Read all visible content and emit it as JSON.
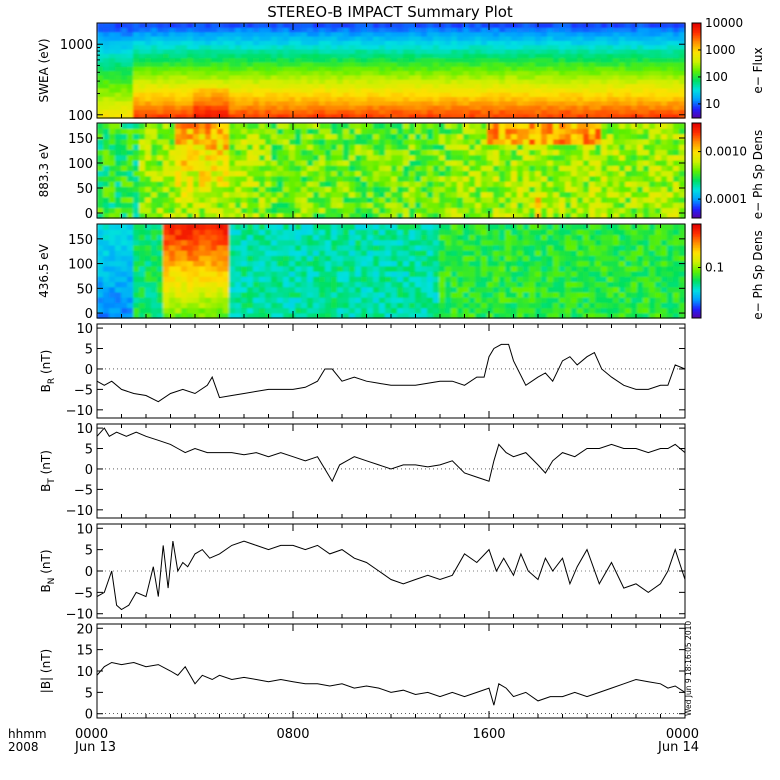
{
  "title": "STEREO-B IMPACT Summary Plot",
  "stamp": "Wed Jun 9 18:16:05 2010",
  "time_axis": {
    "row_label_1": "hhmm",
    "row_label_2": "2008",
    "ticks": [
      {
        "hour": 0,
        "label": "0000",
        "sub": "Jun 13"
      },
      {
        "hour": 8,
        "label": "0800",
        "sub": ""
      },
      {
        "hour": 16,
        "label": "1600",
        "sub": ""
      },
      {
        "hour": 24,
        "label": "0000",
        "sub": "Jun 14"
      }
    ],
    "range_hours": [
      0,
      24
    ]
  },
  "colorscale": [
    "#5a00a0",
    "#2020ff",
    "#00a0ff",
    "#00e0e0",
    "#00e060",
    "#60f000",
    "#d0f000",
    "#ffe000",
    "#ff9000",
    "#ff3000",
    "#e00000"
  ],
  "chart_data": [
    {
      "type": "heatmap",
      "ylabel": "SWEA (eV)",
      "yscale": "log",
      "ylim": [
        90,
        2000
      ],
      "yticks": [
        {
          "v": 100,
          "label": "100"
        },
        {
          "v": 1000,
          "label": "1000"
        }
      ],
      "colorbar": {
        "label": "e− Flux",
        "scale": "log",
        "range": [
          3,
          10000
        ],
        "ticks": [
          {
            "v": 10,
            "label": "10"
          },
          {
            "v": 100,
            "label": "100"
          },
          {
            "v": 1000,
            "label": "1000"
          },
          {
            "v": 10000,
            "label": "10000"
          }
        ]
      }
    },
    {
      "type": "heatmap",
      "ylabel": "883.3 eV",
      "yscale": "linear",
      "ylim": [
        -10,
        180
      ],
      "yticks": [
        {
          "v": 0,
          "label": "0"
        },
        {
          "v": 50,
          "label": "50"
        },
        {
          "v": 100,
          "label": "100"
        },
        {
          "v": 150,
          "label": "150"
        }
      ],
      "colorbar": {
        "label": "e− Ph Sp Dens",
        "scale": "log",
        "range": [
          4e-05,
          0.004
        ],
        "ticks": [
          {
            "v": 0.0001,
            "label": "0.0001"
          },
          {
            "v": 0.001,
            "label": "0.0010"
          }
        ]
      }
    },
    {
      "type": "heatmap",
      "ylabel": "436.5 eV",
      "yscale": "linear",
      "ylim": [
        -10,
        180
      ],
      "yticks": [
        {
          "v": 0,
          "label": "0"
        },
        {
          "v": 50,
          "label": "50"
        },
        {
          "v": 100,
          "label": "100"
        },
        {
          "v": 150,
          "label": "150"
        }
      ],
      "colorbar": {
        "label": "e− Ph Sp Dens",
        "scale": "log",
        "range": [
          0.02,
          0.4
        ],
        "ticks": [
          {
            "v": 0.1,
            "label": "0.1"
          }
        ]
      }
    },
    {
      "type": "line",
      "ylabel_main": "B",
      "ylabel_sub": "R",
      "ylabel_unit": " (nT)",
      "ylim": [
        -12,
        11
      ],
      "yticks": [
        {
          "v": -10,
          "label": "−10"
        },
        {
          "v": -5,
          "label": "−5"
        },
        {
          "v": 0,
          "label": "0"
        },
        {
          "v": 5,
          "label": "5"
        },
        {
          "v": 10,
          "label": "10"
        }
      ],
      "x": [
        0,
        0.3,
        0.6,
        1.0,
        1.5,
        2.0,
        2.5,
        3.0,
        3.5,
        4.0,
        4.5,
        4.7,
        5.0,
        5.5,
        6.0,
        6.5,
        7.0,
        7.5,
        8.0,
        8.5,
        9.0,
        9.3,
        9.6,
        10.0,
        10.5,
        11.0,
        11.5,
        12.0,
        12.5,
        13.0,
        13.5,
        14.0,
        14.5,
        15.0,
        15.5,
        15.8,
        16.0,
        16.2,
        16.5,
        16.8,
        17.0,
        17.5,
        18.0,
        18.3,
        18.6,
        19.0,
        19.3,
        19.6,
        20.0,
        20.3,
        20.6,
        21.0,
        21.5,
        22.0,
        22.5,
        23.0,
        23.3,
        23.6,
        24.0
      ],
      "y": [
        -3,
        -4,
        -3,
        -5,
        -6,
        -6.5,
        -8,
        -6,
        -5,
        -6,
        -4,
        -2,
        -7,
        -6.5,
        -6,
        -5.5,
        -5,
        -5,
        -5,
        -4.5,
        -3,
        0,
        0,
        -3,
        -2,
        -3,
        -3.5,
        -4,
        -4,
        -4,
        -3.5,
        -3,
        -3,
        -4,
        -2,
        -2,
        3,
        5,
        6,
        6,
        2,
        -4,
        -2,
        -1,
        -3,
        2,
        3,
        1,
        3,
        4,
        0,
        -2,
        -4,
        -5,
        -5,
        -4,
        -4,
        1,
        0
      ]
    },
    {
      "type": "line",
      "ylabel_main": "B",
      "ylabel_sub": "T",
      "ylabel_unit": " (nT)",
      "ylim": [
        -12,
        11
      ],
      "yticks": [
        {
          "v": -10,
          "label": "−10"
        },
        {
          "v": -5,
          "label": "−5"
        },
        {
          "v": 0,
          "label": "0"
        },
        {
          "v": 5,
          "label": "5"
        },
        {
          "v": 10,
          "label": "10"
        }
      ],
      "x": [
        0,
        0.3,
        0.5,
        0.8,
        1.2,
        1.6,
        2.0,
        2.5,
        3.0,
        3.3,
        3.6,
        4.0,
        4.5,
        5.0,
        5.5,
        6.0,
        6.5,
        7.0,
        7.5,
        8.0,
        8.5,
        9.0,
        9.3,
        9.6,
        9.9,
        10.2,
        10.5,
        11.0,
        11.5,
        12.0,
        12.5,
        13.0,
        13.5,
        14.0,
        14.5,
        15.0,
        15.5,
        16.0,
        16.2,
        16.4,
        16.7,
        17.0,
        17.5,
        18.0,
        18.3,
        18.6,
        19.0,
        19.5,
        20.0,
        20.5,
        21.0,
        21.5,
        22.0,
        22.5,
        23.0,
        23.3,
        23.6,
        24.0
      ],
      "y": [
        8,
        10,
        8,
        9,
        8,
        9,
        8,
        7,
        6,
        5,
        4,
        5,
        4,
        4,
        4,
        3.5,
        4,
        3,
        4,
        3,
        2,
        3,
        0,
        -3,
        1,
        2,
        3,
        2,
        1,
        0,
        1,
        1,
        0.5,
        1,
        2,
        -1,
        -2,
        -3,
        2,
        6,
        4,
        3,
        4,
        1,
        -1,
        2,
        4,
        3,
        5,
        5,
        6,
        5,
        5,
        4,
        5,
        5,
        6,
        4
      ]
    },
    {
      "type": "line",
      "ylabel_main": "B",
      "ylabel_sub": "N",
      "ylabel_unit": " (nT)",
      "ylim": [
        -11,
        11
      ],
      "yticks": [
        {
          "v": -10,
          "label": "−10"
        },
        {
          "v": -5,
          "label": "−5"
        },
        {
          "v": 0,
          "label": "0"
        },
        {
          "v": 5,
          "label": "5"
        },
        {
          "v": 10,
          "label": "10"
        }
      ],
      "x": [
        0,
        0.3,
        0.6,
        0.8,
        1.0,
        1.3,
        1.6,
        2.0,
        2.3,
        2.5,
        2.7,
        2.9,
        3.1,
        3.3,
        3.5,
        3.7,
        4.0,
        4.3,
        4.6,
        5.0,
        5.5,
        6.0,
        6.5,
        7.0,
        7.5,
        8.0,
        8.5,
        9.0,
        9.5,
        10.0,
        10.5,
        11.0,
        11.5,
        12.0,
        12.5,
        13.0,
        13.5,
        14.0,
        14.5,
        15.0,
        15.5,
        16.0,
        16.3,
        16.6,
        17.0,
        17.3,
        17.6,
        18.0,
        18.3,
        18.6,
        19.0,
        19.3,
        19.6,
        20.0,
        20.5,
        21.0,
        21.5,
        22.0,
        22.5,
        23.0,
        23.3,
        23.6,
        24.0
      ],
      "y": [
        -6,
        -5,
        0,
        -8,
        -9,
        -8,
        -5,
        -6,
        1,
        -6,
        6,
        -4,
        7,
        0,
        2,
        1,
        4,
        5,
        3,
        4,
        6,
        7,
        6,
        5,
        6,
        6,
        5,
        6,
        4,
        5,
        3,
        2,
        0,
        -2,
        -3,
        -2,
        -1,
        -2,
        -1,
        4,
        2,
        5,
        0,
        3,
        -1,
        4,
        0,
        -2,
        3,
        0,
        3,
        -3,
        1,
        5,
        -3,
        2,
        -4,
        -3,
        -5,
        -3,
        0,
        5,
        -2
      ]
    },
    {
      "type": "line",
      "ylabel_main": "|B|",
      "ylabel_sub": "",
      "ylabel_unit": " (nT)",
      "ylim": [
        -1,
        21
      ],
      "yticks": [
        {
          "v": 0,
          "label": "0"
        },
        {
          "v": 5,
          "label": "5"
        },
        {
          "v": 10,
          "label": "10"
        },
        {
          "v": 15,
          "label": "15"
        },
        {
          "v": 20,
          "label": "20"
        }
      ],
      "x": [
        0,
        0.3,
        0.6,
        1.0,
        1.5,
        2.0,
        2.5,
        3.0,
        3.3,
        3.6,
        4.0,
        4.3,
        4.7,
        5.0,
        5.5,
        6.0,
        6.5,
        7.0,
        7.5,
        8.0,
        8.5,
        9.0,
        9.5,
        10.0,
        10.5,
        11.0,
        11.5,
        12.0,
        12.5,
        13.0,
        13.5,
        14.0,
        14.5,
        15.0,
        15.5,
        16.0,
        16.2,
        16.4,
        16.7,
        17.0,
        17.5,
        18.0,
        18.5,
        19.0,
        19.5,
        20.0,
        20.5,
        21.0,
        21.5,
        22.0,
        22.5,
        23.0,
        23.3,
        23.6,
        24.0
      ],
      "y": [
        9,
        11,
        12,
        11.5,
        12,
        11,
        11.5,
        10,
        9,
        11,
        7,
        9,
        8,
        9,
        8,
        8.5,
        8,
        7.5,
        8,
        7.5,
        7,
        7,
        6.5,
        7,
        6,
        6.5,
        6,
        5,
        5.5,
        4.5,
        5,
        4,
        5,
        4,
        5,
        6,
        2,
        7,
        6,
        4,
        5,
        3,
        4,
        4,
        5,
        4,
        5,
        6,
        7,
        8,
        7.5,
        7,
        6,
        6.5,
        5
      ]
    }
  ]
}
